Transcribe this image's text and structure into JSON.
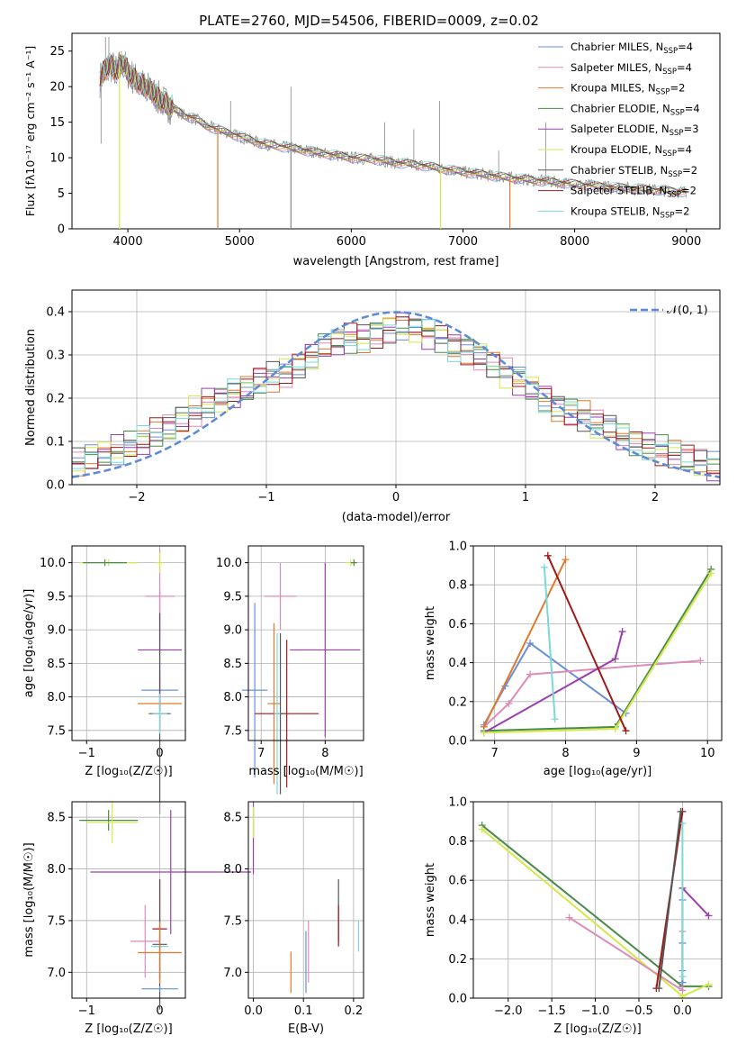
{
  "figure": {
    "colors": {
      "chabrier_miles": "#6a8fd8",
      "salpeter_miles": "#e08ab8",
      "kroupa_miles": "#e07a2a",
      "chabrier_elodie": "#4a8a4a",
      "salpeter_elodie": "#9b3fb0",
      "kroupa_elodie": "#d4e84a",
      "chabrier_stelib": "#555555",
      "salpeter_stelib": "#a01818",
      "kroupa_stelib": "#7ad8d8",
      "normal_curve": "#5b8ad8",
      "observed": "#888888"
    }
  },
  "chart_data": [
    {
      "id": "spectrum",
      "type": "line",
      "title": "PLATE=2760, MJD=54506, FIBERID=0009, z=0.02",
      "xlabel": "wavelength [Angstrom, rest frame]",
      "ylabel": "Flux [fλ10⁻¹⁷ erg cm⁻² s⁻¹ A⁻¹]",
      "xlim": [
        3500,
        9300
      ],
      "ylim": [
        0,
        27.5
      ],
      "xticks": [
        "4000",
        "5000",
        "6000",
        "7000",
        "8000",
        "9000"
      ],
      "yticks": [
        "0",
        "5",
        "10",
        "15",
        "20",
        "25"
      ],
      "legend_position": "top-right",
      "legend": [
        {
          "label": "Chabrier MILES, N",
          "sub": "SSP",
          "suffix": "=4",
          "color_key": "chabrier_miles"
        },
        {
          "label": "Salpeter MILES, N",
          "sub": "SSP",
          "suffix": "=4",
          "color_key": "salpeter_miles"
        },
        {
          "label": "Kroupa MILES, N",
          "sub": "SSP",
          "suffix": "=2",
          "color_key": "kroupa_miles"
        },
        {
          "label": "Chabrier ELODIE, N",
          "sub": "SSP",
          "suffix": "=4",
          "color_key": "chabrier_elodie"
        },
        {
          "label": "Salpeter ELODIE, N",
          "sub": "SSP",
          "suffix": "=3",
          "color_key": "salpeter_elodie"
        },
        {
          "label": "Kroupa ELODIE, N",
          "sub": "SSP",
          "suffix": "=4",
          "color_key": "kroupa_elodie"
        },
        {
          "label": "Chabrier STELIB, N",
          "sub": "SSP",
          "suffix": "=2",
          "color_key": "chabrier_stelib"
        },
        {
          "label": "Salpeter STELIB, N",
          "sub": "SSP",
          "suffix": "=2",
          "color_key": "salpeter_stelib"
        },
        {
          "label": "Kroupa STELIB, N",
          "sub": "SSP",
          "suffix": "=2",
          "color_key": "kroupa_stelib"
        }
      ],
      "model_curve": {
        "x": [
          3750,
          3800,
          3850,
          3900,
          3950,
          4000,
          4100,
          4200,
          4300,
          4400,
          4500,
          4600,
          4700,
          4800,
          4900,
          5000,
          5200,
          5400,
          5600,
          5800,
          6000,
          6200,
          6400,
          6600,
          6800,
          7000,
          7200,
          7400,
          7600,
          7800,
          8000,
          8200,
          8400,
          8600,
          8800,
          9000
        ],
        "y": [
          21.0,
          22.5,
          23.0,
          22.0,
          23.5,
          22.0,
          20.5,
          19.5,
          18.0,
          17.0,
          16.0,
          15.5,
          14.5,
          14.0,
          13.5,
          13.0,
          12.0,
          11.5,
          11.0,
          10.5,
          10.0,
          9.8,
          9.3,
          9.0,
          8.5,
          8.0,
          7.6,
          7.2,
          6.9,
          6.6,
          6.3,
          6.0,
          5.8,
          5.6,
          5.4,
          5.2
        ]
      },
      "observed_spikes": [
        {
          "x": 3760,
          "y": 12
        },
        {
          "x": 3800,
          "y": 27
        },
        {
          "x": 3830,
          "y": 27
        },
        {
          "x": 4920,
          "y": 18
        },
        {
          "x": 5460,
          "y": 20
        },
        {
          "x": 6300,
          "y": 15
        },
        {
          "x": 6560,
          "y": 14
        },
        {
          "x": 6790,
          "y": 18
        },
        {
          "x": 7320,
          "y": 11
        },
        {
          "x": 7740,
          "y": 15
        }
      ],
      "absorption_dips": [
        {
          "x": 3925,
          "y": 0,
          "color_key": "kroupa_elodie"
        },
        {
          "x": 4805,
          "y": 0,
          "color_key": "kroupa_miles"
        },
        {
          "x": 5460,
          "y": 0,
          "color_key": "observed"
        },
        {
          "x": 6800,
          "y": 0,
          "color_key": "kroupa_elodie"
        },
        {
          "x": 7420,
          "y": 0,
          "color_key": "kroupa_miles"
        }
      ]
    },
    {
      "id": "residuals",
      "type": "histogram",
      "xlabel": "(data-model)/error",
      "ylabel": "Normed distribution",
      "xlim": [
        -2.5,
        2.5
      ],
      "ylim": [
        0,
        0.45
      ],
      "xticks": [
        "−2",
        "−1",
        "0",
        "1",
        "2"
      ],
      "yticks": [
        "0.0",
        "0.1",
        "0.2",
        "0.3",
        "0.4"
      ],
      "legend_position": "top-right",
      "legend": [
        {
          "label": "𝒩(0, 1)",
          "color_key": "normal_curve"
        }
      ],
      "bin_width": 0.1,
      "base_values": [
        0.05,
        0.06,
        0.07,
        0.08,
        0.09,
        0.1,
        0.12,
        0.13,
        0.15,
        0.17,
        0.19,
        0.2,
        0.21,
        0.22,
        0.24,
        0.25,
        0.26,
        0.28,
        0.3,
        0.32,
        0.33,
        0.34,
        0.34,
        0.35,
        0.36,
        0.37,
        0.36,
        0.35,
        0.34,
        0.32,
        0.31,
        0.3,
        0.28,
        0.26,
        0.24,
        0.22,
        0.2,
        0.18,
        0.17,
        0.16,
        0.14,
        0.13,
        0.11,
        0.1,
        0.09,
        0.08,
        0.07,
        0.06,
        0.05,
        0.04
      ],
      "normal": {
        "mean": 0,
        "std": 1
      }
    },
    {
      "id": "z_age",
      "type": "errorbar",
      "xlabel": "Z [log₁₀(Z/Z☉)]",
      "ylabel": "age  [log₁₀(age/yr)]",
      "xlim": [
        -1.2,
        0.35
      ],
      "ylim": [
        7.35,
        10.25
      ],
      "xticks": [
        {
          "v": -1,
          "t": "−1"
        },
        {
          "v": 0,
          "t": "0"
        }
      ],
      "yticks": [
        {
          "v": 7.5,
          "t": "7.5"
        },
        {
          "v": 8.0,
          "t": "8.0"
        },
        {
          "v": 8.5,
          "t": "8.5"
        },
        {
          "v": 9.0,
          "t": "9.0"
        },
        {
          "v": 9.5,
          "t": "9.5"
        },
        {
          "v": 10.0,
          "t": "10.0"
        }
      ],
      "points": [
        {
          "x": 0.0,
          "y": 7.9,
          "xerr": 0.3,
          "yerr": 0.4,
          "color_key": "kroupa_miles"
        },
        {
          "x": 0.0,
          "y": 8.1,
          "xerr": 0.25,
          "yerr": 0.3,
          "color_key": "chabrier_miles"
        },
        {
          "x": 0.0,
          "y": 8.7,
          "xerr": 0.3,
          "yerr": 0.9,
          "color_key": "salpeter_elodie"
        },
        {
          "x": 0.0,
          "y": 9.5,
          "xerr": 0.2,
          "yerr": 0.7,
          "color_key": "salpeter_miles"
        },
        {
          "x": 0.0,
          "y": 10.0,
          "xerr": 0.05,
          "yerr": 0.15,
          "color_key": "kroupa_elodie"
        },
        {
          "x": -0.7,
          "y": 10.0,
          "xerr": 0.4,
          "yerr": 0.05,
          "color_key": "kroupa_elodie"
        },
        {
          "x": -0.75,
          "y": 10.0,
          "xerr": 0.3,
          "yerr": 0.05,
          "color_key": "chabrier_elodie"
        },
        {
          "x": 0.0,
          "y": 7.75,
          "xerr": 0.15,
          "yerr": 1.5,
          "color_key": "chabrier_stelib"
        },
        {
          "x": 0.0,
          "y": 7.75,
          "xerr": 0.1,
          "yerr": 0.3,
          "color_key": "kroupa_stelib"
        }
      ]
    },
    {
      "id": "mass_age",
      "type": "errorbar",
      "xlabel": "mass [log₁₀(M/M☉)]",
      "ylabel": "",
      "xlim": [
        6.8,
        8.6
      ],
      "ylim": [
        7.35,
        10.25
      ],
      "xticks": [
        {
          "v": 7,
          "t": "7"
        },
        {
          "v": 8,
          "t": "8"
        }
      ],
      "yticks": [
        {
          "v": 7.5,
          "t": "7.5"
        },
        {
          "v": 8.0,
          "t": "8.0"
        },
        {
          "v": 8.5,
          "t": "8.5"
        },
        {
          "v": 9.0,
          "t": "9.0"
        },
        {
          "v": 9.5,
          "t": "9.5"
        },
        {
          "v": 10.0,
          "t": "10.0"
        }
      ],
      "points": [
        {
          "x": 6.9,
          "y": 8.1,
          "xerr": 0.2,
          "yerr": 1.3,
          "color_key": "chabrier_miles"
        },
        {
          "x": 7.2,
          "y": 7.9,
          "xerr": 0.1,
          "yerr": 1.2,
          "color_key": "kroupa_miles"
        },
        {
          "x": 7.3,
          "y": 9.5,
          "xerr": 0.25,
          "yerr": 0.5,
          "color_key": "salpeter_miles"
        },
        {
          "x": 7.4,
          "y": 7.75,
          "xerr": 0.5,
          "yerr": 1.1,
          "color_key": "salpeter_stelib"
        },
        {
          "x": 7.3,
          "y": 7.75,
          "xerr": 0.05,
          "yerr": 1.2,
          "color_key": "chabrier_stelib"
        },
        {
          "x": 7.25,
          "y": 7.75,
          "xerr": 0.05,
          "yerr": 1.2,
          "color_key": "kroupa_stelib"
        },
        {
          "x": 8.0,
          "y": 8.7,
          "xerr": 0.55,
          "yerr": 1.3,
          "color_key": "salpeter_elodie"
        },
        {
          "x": 8.4,
          "y": 10.0,
          "xerr": 0.08,
          "yerr": 0.05,
          "color_key": "kroupa_elodie"
        },
        {
          "x": 8.45,
          "y": 10.0,
          "xerr": 0.05,
          "yerr": 0.05,
          "color_key": "chabrier_elodie"
        }
      ]
    },
    {
      "id": "age_weight",
      "type": "line",
      "xlabel": "age  [log₁₀(age/yr)]",
      "ylabel": "mass weight",
      "xlim": [
        6.7,
        10.2
      ],
      "ylim": [
        0,
        1.0
      ],
      "xticks": [
        {
          "v": 7,
          "t": "7"
        },
        {
          "v": 8,
          "t": "8"
        },
        {
          "v": 9,
          "t": "9"
        },
        {
          "v": 10,
          "t": "10"
        }
      ],
      "yticks": [
        {
          "v": 0,
          "t": "0.0"
        },
        {
          "v": 0.2,
          "t": "0.2"
        },
        {
          "v": 0.4,
          "t": "0.4"
        },
        {
          "v": 0.6,
          "t": "0.6"
        },
        {
          "v": 0.8,
          "t": "0.8"
        },
        {
          "v": 1.0,
          "t": "1.0"
        }
      ],
      "series": [
        {
          "color_key": "chabrier_miles",
          "x": [
            6.85,
            7.15,
            7.5,
            8.85
          ],
          "y": [
            0.08,
            0.28,
            0.5,
            0.14
          ]
        },
        {
          "color_key": "salpeter_miles",
          "x": [
            6.85,
            7.2,
            7.5,
            9.9
          ],
          "y": [
            0.07,
            0.19,
            0.34,
            0.41
          ]
        },
        {
          "color_key": "kroupa_miles",
          "x": [
            6.85,
            8.0
          ],
          "y": [
            0.07,
            0.93
          ]
        },
        {
          "color_key": "chabrier_elodie",
          "x": [
            6.85,
            8.7,
            10.05
          ],
          "y": [
            0.05,
            0.07,
            0.88
          ]
        },
        {
          "color_key": "salpeter_elodie",
          "x": [
            6.85,
            8.7,
            8.8
          ],
          "y": [
            0.04,
            0.42,
            0.56
          ]
        },
        {
          "color_key": "kroupa_elodie",
          "x": [
            6.85,
            8.7,
            10.05
          ],
          "y": [
            0.04,
            0.06,
            0.86
          ]
        },
        {
          "color_key": "salpeter_stelib",
          "x": [
            7.75,
            8.85
          ],
          "y": [
            0.95,
            0.05
          ]
        },
        {
          "color_key": "kroupa_stelib",
          "x": [
            7.7,
            7.85
          ],
          "y": [
            0.89,
            0.11
          ]
        }
      ]
    },
    {
      "id": "z_mass",
      "type": "errorbar",
      "xlabel": "Z [log₁₀(Z/Z☉)]",
      "ylabel": "mass [log₁₀(M/M☉)]",
      "xlim": [
        -1.2,
        0.35
      ],
      "ylim": [
        6.75,
        8.65
      ],
      "xticks": [
        {
          "v": -1,
          "t": "−1"
        },
        {
          "v": 0,
          "t": "0"
        }
      ],
      "yticks": [
        {
          "v": 7.0,
          "t": "7.0"
        },
        {
          "v": 7.5,
          "t": "7.5"
        },
        {
          "v": 8.0,
          "t": "8.0"
        },
        {
          "v": 8.5,
          "t": "8.5"
        }
      ],
      "points": [
        {
          "x": -0.7,
          "y": 8.47,
          "xerr": 0.4,
          "yerr": 0.1,
          "color_key": "chabrier_elodie"
        },
        {
          "x": -0.65,
          "y": 8.45,
          "xerr": 0.35,
          "yerr": 0.2,
          "color_key": "kroupa_elodie"
        },
        {
          "x": 0.15,
          "y": 7.97,
          "xerr": 1.1,
          "yerr": 0.6,
          "color_key": "salpeter_elodie"
        },
        {
          "x": -0.2,
          "y": 7.3,
          "xerr": 0.2,
          "yerr": 0.35,
          "color_key": "salpeter_miles"
        },
        {
          "x": 0.0,
          "y": 7.42,
          "xerr": 0.1,
          "yerr": 0.48,
          "color_key": "salpeter_stelib"
        },
        {
          "x": 0.0,
          "y": 7.25,
          "xerr": 0.12,
          "yerr": 0.05,
          "color_key": "kroupa_stelib"
        },
        {
          "x": 0.0,
          "y": 7.27,
          "xerr": 0.1,
          "yerr": 0.63,
          "color_key": "chabrier_stelib"
        },
        {
          "x": 0.0,
          "y": 7.19,
          "xerr": 0.3,
          "yerr": 0.3,
          "color_key": "kroupa_miles"
        },
        {
          "x": 0.0,
          "y": 6.84,
          "xerr": 0.25,
          "yerr": 0.03,
          "color_key": "chabrier_miles"
        }
      ]
    },
    {
      "id": "ebv_mass",
      "type": "errorbar",
      "xlabel": "E(B-V)",
      "ylabel": "",
      "xlim": [
        -0.01,
        0.22
      ],
      "ylim": [
        6.75,
        8.65
      ],
      "xticks": [
        {
          "v": 0,
          "t": "0.0"
        },
        {
          "v": 0.1,
          "t": "0.1"
        },
        {
          "v": 0.2,
          "t": "0.2"
        }
      ],
      "yticks": [
        {
          "v": 7.0,
          "t": "7.0"
        },
        {
          "v": 7.5,
          "t": "7.5"
        },
        {
          "v": 8.0,
          "t": "8.0"
        },
        {
          "v": 8.5,
          "t": "8.5"
        }
      ],
      "points": [
        {
          "x": 0.0,
          "y": 8.3,
          "xerr": 0,
          "yerr": 0.35,
          "color_key": "salpeter_elodie"
        },
        {
          "x": 0.0,
          "y": 8.45,
          "xerr": 0,
          "yerr": 0.15,
          "color_key": "kroupa_elodie"
        },
        {
          "x": 0.075,
          "y": 7.0,
          "xerr": 0,
          "yerr": 0.2,
          "color_key": "kroupa_miles"
        },
        {
          "x": 0.105,
          "y": 7.1,
          "xerr": 0,
          "yerr": 0.3,
          "color_key": "chabrier_miles"
        },
        {
          "x": 0.11,
          "y": 7.2,
          "xerr": 0,
          "yerr": 0.3,
          "color_key": "salpeter_miles"
        },
        {
          "x": 0.17,
          "y": 7.6,
          "xerr": 0,
          "yerr": 0.3,
          "color_key": "chabrier_stelib"
        },
        {
          "x": 0.17,
          "y": 7.45,
          "xerr": 0,
          "yerr": 0.2,
          "color_key": "salpeter_stelib"
        },
        {
          "x": 0.21,
          "y": 7.35,
          "xerr": 0,
          "yerr": 0.15,
          "color_key": "kroupa_stelib"
        }
      ]
    },
    {
      "id": "z_weight",
      "type": "line",
      "xlabel": "Z [log₁₀(Z/Z☉)]",
      "ylabel": "mass weight",
      "xlim": [
        -2.4,
        0.45
      ],
      "ylim": [
        0,
        1.0
      ],
      "xticks": [
        {
          "v": -2.0,
          "t": "−2.0"
        },
        {
          "v": -1.5,
          "t": "−1.5"
        },
        {
          "v": -1.0,
          "t": "−1.0"
        },
        {
          "v": -0.5,
          "t": "−0.5"
        },
        {
          "v": 0,
          "t": "0.0"
        }
      ],
      "yticks": [
        {
          "v": 0,
          "t": "0.0"
        },
        {
          "v": 0.2,
          "t": "0.2"
        },
        {
          "v": 0.4,
          "t": "0.4"
        },
        {
          "v": 0.6,
          "t": "0.6"
        },
        {
          "v": 0.8,
          "t": "0.8"
        },
        {
          "v": 1.0,
          "t": "1.0"
        }
      ],
      "series": [
        {
          "color_key": "chabrier_elodie",
          "x": [
            -2.3,
            0.0,
            0.3
          ],
          "y": [
            0.88,
            0.06,
            0.06
          ]
        },
        {
          "color_key": "kroupa_elodie",
          "x": [
            -2.3,
            0.0,
            0.3
          ],
          "y": [
            0.86,
            0.01,
            0.07
          ]
        },
        {
          "color_key": "salpeter_miles",
          "x": [
            -1.3,
            0.0,
            0.0
          ],
          "y": [
            0.41,
            0.04,
            0.34
          ]
        },
        {
          "color_key": "salpeter_elodie",
          "x": [
            0.0,
            0.3
          ],
          "y": [
            0.56,
            0.42
          ]
        },
        {
          "color_key": "chabrier_miles",
          "x": [
            0.0,
            0.0,
            0.0,
            0.0
          ],
          "y": [
            0.08,
            0.28,
            0.5,
            0.14
          ]
        },
        {
          "color_key": "salpeter_stelib",
          "x": [
            -0.3,
            0.0
          ],
          "y": [
            0.05,
            0.95
          ]
        },
        {
          "color_key": "kroupa_stelib",
          "x": [
            0.0,
            0.0
          ],
          "y": [
            0.11,
            0.89
          ]
        },
        {
          "color_key": "chabrier_stelib",
          "x": [
            -0.27,
            -0.02
          ],
          "y": [
            0.05,
            0.95
          ]
        }
      ]
    }
  ]
}
